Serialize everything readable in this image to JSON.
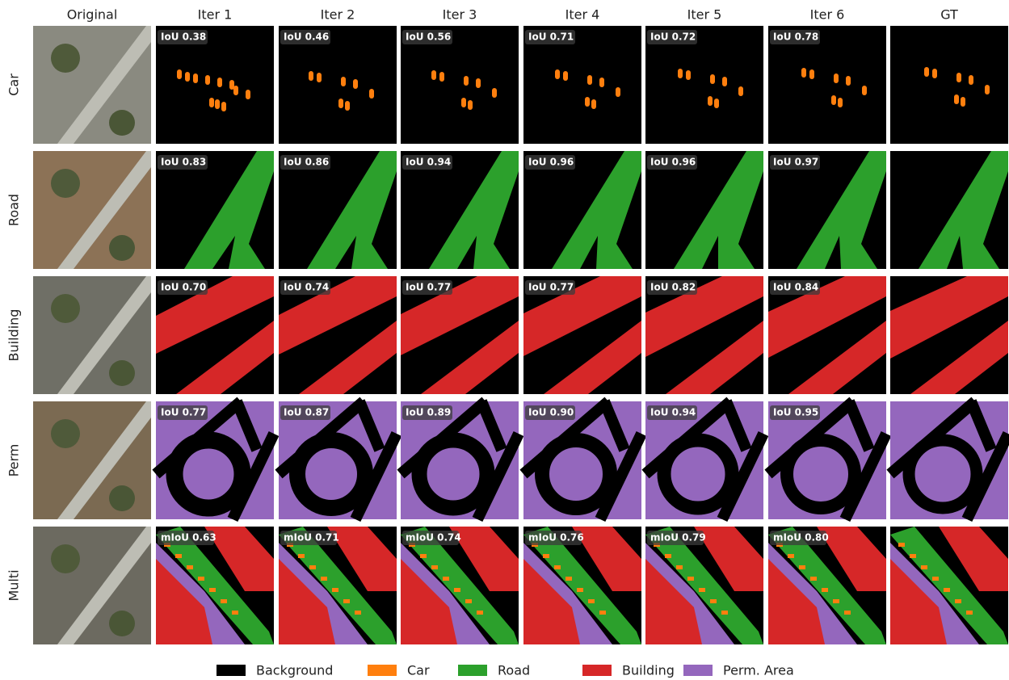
{
  "columns": [
    "Original",
    "Iter 1",
    "Iter 2",
    "Iter 3",
    "Iter 4",
    "Iter 5",
    "Iter 6",
    "GT"
  ],
  "rows": [
    {
      "label": "Car",
      "scores": [
        "IoU 0.38",
        "IoU 0.46",
        "IoU 0.56",
        "IoU 0.71",
        "IoU 0.72",
        "IoU 0.78"
      ]
    },
    {
      "label": "Road",
      "scores": [
        "IoU 0.83",
        "IoU 0.86",
        "IoU 0.94",
        "IoU 0.96",
        "IoU 0.96",
        "IoU 0.97"
      ]
    },
    {
      "label": "Building",
      "scores": [
        "IoU 0.70",
        "IoU 0.74",
        "IoU 0.77",
        "IoU 0.77",
        "IoU 0.82",
        "IoU 0.84"
      ]
    },
    {
      "label": "Perm",
      "scores": [
        "IoU 0.77",
        "IoU 0.87",
        "IoU 0.89",
        "IoU 0.90",
        "IoU 0.94",
        "IoU 0.95"
      ]
    },
    {
      "label": "Multi",
      "scores": [
        "mIoU 0.63",
        "mIoU 0.71",
        "mIoU 0.74",
        "mIoU 0.76",
        "mIoU 0.79",
        "mIoU 0.80"
      ]
    }
  ],
  "legend": [
    {
      "name": "Background",
      "color": "#000000"
    },
    {
      "name": "Car",
      "color": "#ff7f0e"
    },
    {
      "name": "Road",
      "color": "#2ca02c"
    },
    {
      "name": "Building",
      "color": "#d62728"
    },
    {
      "name": "Perm. Area",
      "color": "#9467bd"
    }
  ]
}
